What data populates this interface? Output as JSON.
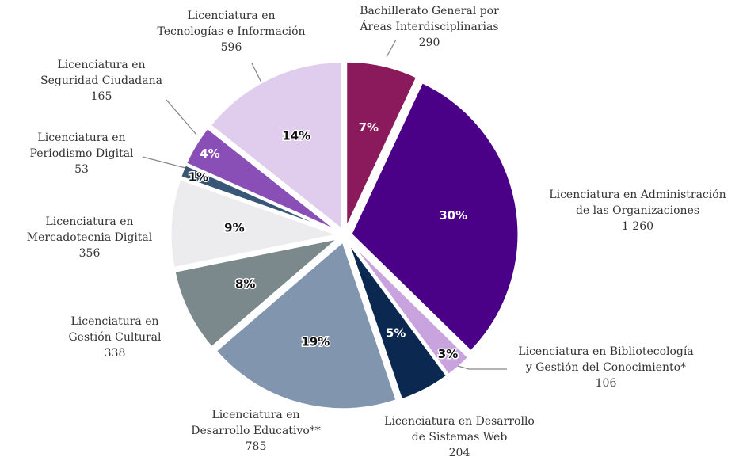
{
  "chart_data": {
    "type": "pie",
    "categories": [
      "Bachillerato General por\nÁreas Interdisciplinarias",
      "Licenciatura en Administración\nde las Organizaciones",
      "Licenciatura en Bibliotecología\ny Gestión del Conocimiento*",
      "Licenciatura en Desarrollo\nde Sistemas Web",
      "Licenciatura en\nDesarrollo Educativo**",
      "Licenciatura en\nGestión Cultural",
      "Licenciatura en\nMercadotecnia Digital",
      "Licenciatura en\nPeriodismo Digital",
      "Licenciatura en\nSeguridad Ciudadana",
      "Licenciatura en\nTecnologías e Información"
    ],
    "values": [
      290,
      1260,
      106,
      204,
      785,
      338,
      356,
      53,
      165,
      596
    ],
    "value_labels": [
      "290",
      "1 260",
      "106",
      "204",
      "785",
      "338",
      "356",
      "53",
      "165",
      "596"
    ],
    "percent_labels": [
      "7%",
      "30%",
      "3%",
      "5%",
      "19%",
      "8%",
      "9%",
      "1%",
      "4%",
      "14%"
    ],
    "colors": [
      "#8b1a5c",
      "#4b0088",
      "#c9a3de",
      "#0b2850",
      "#8196ae",
      "#7b888c",
      "#ececee",
      "#385676",
      "#8a4fb6",
      "#e0cdee"
    ]
  }
}
